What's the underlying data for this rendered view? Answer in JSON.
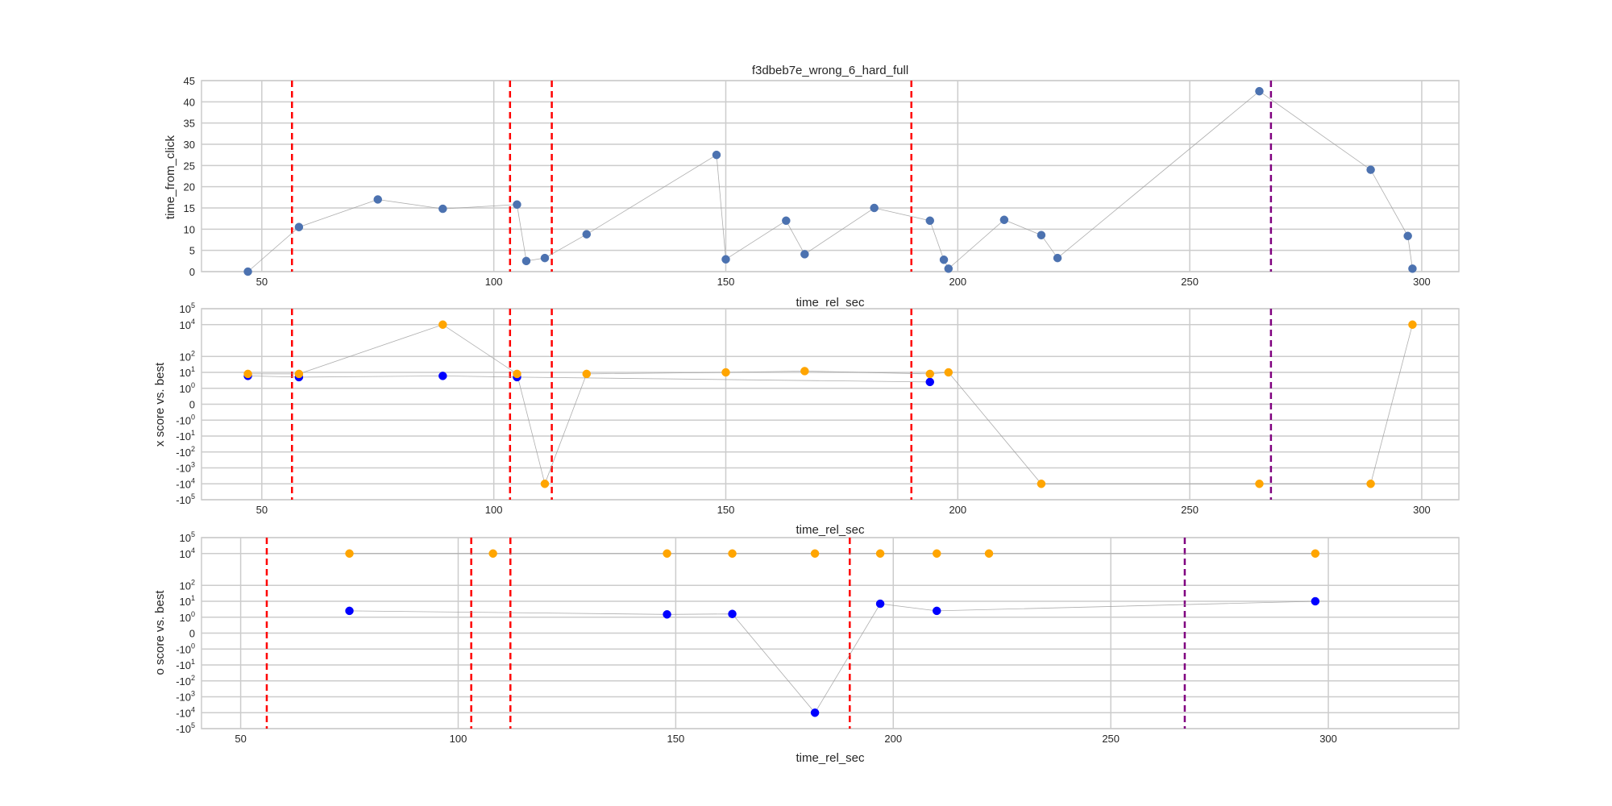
{
  "chart_data": [
    {
      "type": "scatter",
      "title": "f3dbeb7e_wrong_6_hard_full",
      "xlabel": "time_rel_sec",
      "ylabel": "time_from_click",
      "xlim": [
        37,
        308
      ],
      "ylim": [
        0,
        45
      ],
      "x_ticks": [
        50,
        100,
        150,
        200,
        250,
        300
      ],
      "y_ticks": [
        0,
        5,
        10,
        15,
        20,
        25,
        30,
        35,
        40,
        45
      ],
      "y_scale": "linear",
      "grid": true,
      "connecting_line": true,
      "red_dashed_vlines": [
        56.5,
        103.5,
        112.5,
        190
      ],
      "purple_dashed_vlines": [
        267.5
      ],
      "series": [
        {
          "color": "#4c72b0",
          "x": [
            47,
            58,
            75,
            89,
            105,
            107,
            111,
            120,
            148,
            150,
            163,
            167,
            182,
            194,
            197,
            198,
            210,
            218,
            221.5,
            265,
            289,
            297,
            298
          ],
          "y": [
            0,
            10.5,
            17,
            14.8,
            15.8,
            2.5,
            3.2,
            8.8,
            27.5,
            2.9,
            12,
            4.1,
            15,
            12,
            2.8,
            0.7,
            12.2,
            8.6,
            3.2,
            42.5,
            24,
            8.4,
            0.7
          ]
        }
      ]
    },
    {
      "type": "scatter",
      "title": "",
      "xlabel": "time_rel_sec",
      "ylabel": "x score vs. best",
      "xlim": [
        37,
        308
      ],
      "y_scale": "symlog",
      "ylim": [
        -100000,
        100000
      ],
      "x_ticks": [
        50,
        100,
        150,
        200,
        250,
        300
      ],
      "y_ticks": [
        "10^5",
        "10^4",
        "10^2",
        "10^1",
        "10^0",
        "0",
        "-10^0",
        "-10^1",
        "-10^2",
        "-10^3",
        "-10^4",
        "-10^5"
      ],
      "grid": true,
      "connecting_line": true,
      "red_dashed_vlines": [
        56.5,
        103.5,
        112.5,
        190
      ],
      "purple_dashed_vlines": [
        267.5
      ],
      "series": [
        {
          "color": "#0000ff",
          "x": [
            47,
            58,
            89,
            105,
            194
          ],
          "y": [
            6,
            5,
            6,
            5,
            2.5
          ]
        },
        {
          "color": "#ffa500",
          "x": [
            47,
            58,
            89,
            105,
            111,
            120,
            150,
            167,
            194,
            198,
            218,
            265,
            289,
            298
          ],
          "y": [
            8,
            8,
            10000,
            8,
            -10000,
            8,
            10,
            12,
            8,
            10,
            -10000,
            -10000,
            -10000,
            10000
          ]
        }
      ]
    },
    {
      "type": "scatter",
      "title": "",
      "xlabel": "time_rel_sec",
      "ylabel": "o score vs. best",
      "xlim": [
        41,
        330
      ],
      "y_scale": "symlog",
      "ylim": [
        -100000,
        100000
      ],
      "x_ticks": [
        50,
        100,
        150,
        200,
        250,
        300
      ],
      "y_ticks": [
        "10^5",
        "10^4",
        "10^2",
        "10^1",
        "10^0",
        "0",
        "-10^0",
        "-10^1",
        "-10^2",
        "-10^3",
        "-10^4",
        "-10^5"
      ],
      "grid": true,
      "connecting_line": true,
      "red_dashed_vlines": [
        56,
        103,
        112,
        190
      ],
      "purple_dashed_vlines": [
        267
      ],
      "series": [
        {
          "color": "#0000ff",
          "x": [
            75,
            148,
            163,
            182,
            197,
            210,
            297
          ],
          "y": [
            2.5,
            1.5,
            1.6,
            -10000,
            7,
            2.5,
            10
          ]
        },
        {
          "color": "#ffa500",
          "x": [
            75,
            108,
            148,
            163,
            182,
            197,
            210,
            222,
            297
          ],
          "y": [
            10000,
            10000,
            10000,
            10000,
            10000,
            10000,
            10000,
            10000,
            10000
          ]
        }
      ]
    }
  ]
}
